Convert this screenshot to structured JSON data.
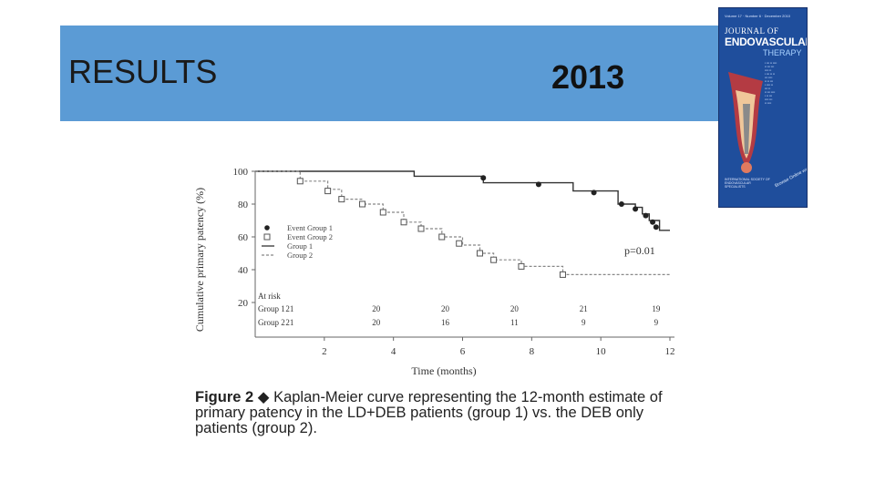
{
  "slide": {
    "title": "RESULTS",
    "year": "2013"
  },
  "journal_cover": {
    "volume_line": "Volume 17 · Number 6 · December 2010",
    "title_line1": "JOURNAL OF",
    "title_line2": "ENDOVASCULAR",
    "title_line3": "THERAPY",
    "society": "INTERNATIONAL SOCIETY OF ENDOVASCULAR SPECIALISTS",
    "badge": "Browse Online www.jevt.org"
  },
  "caption": {
    "label": "Figure 2",
    "text": "Kaplan-Meier curve representing the 12-month estimate of primary patency in the LD+DEB patients (group 1) vs. the DEB only patients (group 2)."
  },
  "chart_data": {
    "type": "line",
    "ylabel": "Cumulative primary patency (%)",
    "xlabel": "Time (months)",
    "y_ticks": [
      "100",
      "80",
      "60",
      "40",
      "20"
    ],
    "x_ticks": [
      "2",
      "4",
      "6",
      "8",
      "10",
      "12"
    ],
    "xlim": [
      0,
      12
    ],
    "ylim": [
      0,
      100
    ],
    "p_value": "p=0.01",
    "legend": [
      {
        "name": "Event Group 1",
        "marker": "filled-circle"
      },
      {
        "name": "Event Group 2",
        "marker": "open-square"
      },
      {
        "name": "Group 1",
        "style": "solid"
      },
      {
        "name": "Group 2",
        "style": "dotted"
      }
    ],
    "series": [
      {
        "name": "Group 1",
        "steps": [
          [
            0,
            100
          ],
          [
            4.6,
            100
          ],
          [
            4.6,
            97
          ],
          [
            6.6,
            97
          ],
          [
            6.6,
            93
          ],
          [
            9.2,
            93
          ],
          [
            9.2,
            88
          ],
          [
            10.5,
            88
          ],
          [
            10.5,
            80
          ],
          [
            11.0,
            80
          ],
          [
            11.0,
            78
          ],
          [
            11.2,
            78
          ],
          [
            11.2,
            74
          ],
          [
            11.4,
            74
          ],
          [
            11.4,
            70
          ],
          [
            11.7,
            70
          ],
          [
            11.7,
            64
          ],
          [
            12,
            64
          ]
        ],
        "events": [
          [
            6.6,
            96
          ],
          [
            8.2,
            92
          ],
          [
            9.8,
            87
          ],
          [
            10.6,
            80
          ],
          [
            11.0,
            77
          ],
          [
            11.3,
            73
          ],
          [
            11.5,
            69
          ],
          [
            11.6,
            66
          ]
        ]
      },
      {
        "name": "Group 2",
        "steps": [
          [
            0,
            100
          ],
          [
            1.3,
            100
          ],
          [
            1.3,
            94
          ],
          [
            2.1,
            94
          ],
          [
            2.1,
            89
          ],
          [
            2.5,
            89
          ],
          [
            2.5,
            83
          ],
          [
            3.1,
            83
          ],
          [
            3.1,
            80
          ],
          [
            3.7,
            80
          ],
          [
            3.7,
            75
          ],
          [
            4.3,
            75
          ],
          [
            4.3,
            69
          ],
          [
            4.8,
            69
          ],
          [
            4.8,
            65
          ],
          [
            5.4,
            65
          ],
          [
            5.4,
            60
          ],
          [
            6.0,
            60
          ],
          [
            6.0,
            55
          ],
          [
            6.5,
            55
          ],
          [
            6.5,
            50
          ],
          [
            6.9,
            50
          ],
          [
            6.9,
            46
          ],
          [
            7.7,
            46
          ],
          [
            7.7,
            42
          ],
          [
            8.9,
            42
          ],
          [
            8.9,
            37
          ],
          [
            12,
            37
          ]
        ],
        "events": [
          [
            1.3,
            94
          ],
          [
            2.1,
            88
          ],
          [
            2.5,
            83
          ],
          [
            3.1,
            80
          ],
          [
            3.7,
            75
          ],
          [
            4.3,
            69
          ],
          [
            4.8,
            65
          ],
          [
            5.4,
            60
          ],
          [
            5.9,
            56
          ],
          [
            6.5,
            50
          ],
          [
            6.9,
            46
          ],
          [
            7.7,
            42
          ],
          [
            8.9,
            37
          ]
        ]
      }
    ],
    "at_risk": {
      "title": "At risk",
      "rows": [
        {
          "label": "Group 1",
          "values": [
            "21",
            "20",
            "20",
            "20",
            "21",
            "19"
          ]
        },
        {
          "label": "Group 2",
          "values": [
            "21",
            "20",
            "16",
            "11",
            "9",
            "9"
          ]
        }
      ]
    }
  }
}
